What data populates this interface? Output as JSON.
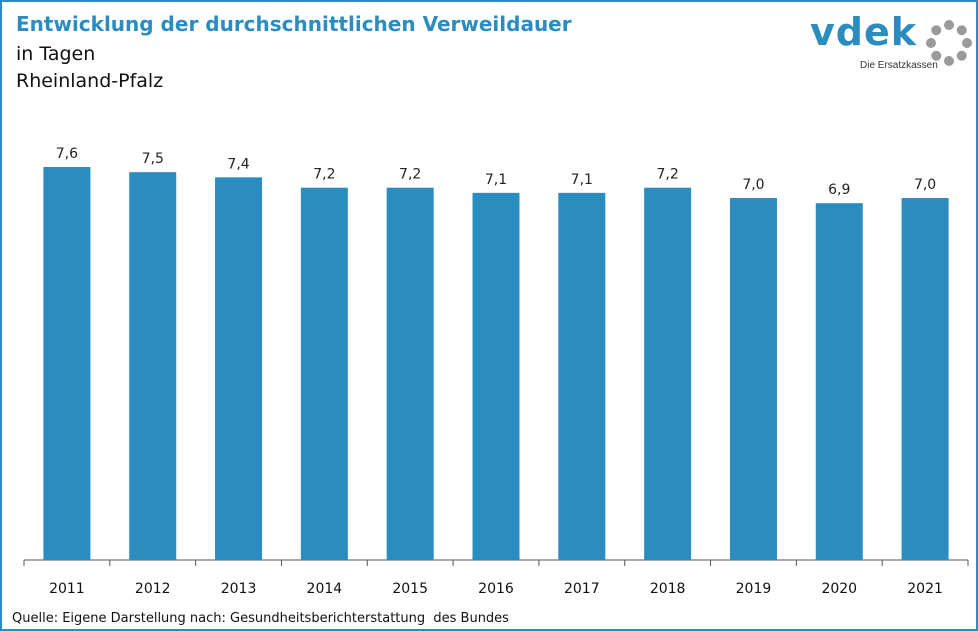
{
  "chart_data": {
    "type": "bar",
    "title": "Entwicklung der durchschnittlichen Verweildauer",
    "subtitle": [
      "in Tagen",
      "Rheinland-Pfalz"
    ],
    "categories": [
      "2011",
      "2012",
      "2013",
      "2014",
      "2015",
      "2016",
      "2017",
      "2018",
      "2019",
      "2020",
      "2021"
    ],
    "values": [
      7.6,
      7.5,
      7.4,
      7.2,
      7.2,
      7.1,
      7.1,
      7.2,
      7.0,
      6.9,
      7.0
    ],
    "value_labels": [
      "7,6",
      "7,5",
      "7,4",
      "7,2",
      "7,2",
      "7,1",
      "7,1",
      "7,2",
      "7,0",
      "6,9",
      "7,0"
    ],
    "bar_color": "#2b8cc0",
    "ylim": [
      0,
      7.6
    ],
    "grid": false,
    "legend": "none"
  },
  "logo": {
    "text": "vdek",
    "tagline": "Die Ersatzkassen",
    "color": "#2b8cc0",
    "ring_color": "#9a9a9a"
  },
  "source": "Quelle: Eigene Darstellung nach: Gesundheitsberichterstattung  des Bundes"
}
